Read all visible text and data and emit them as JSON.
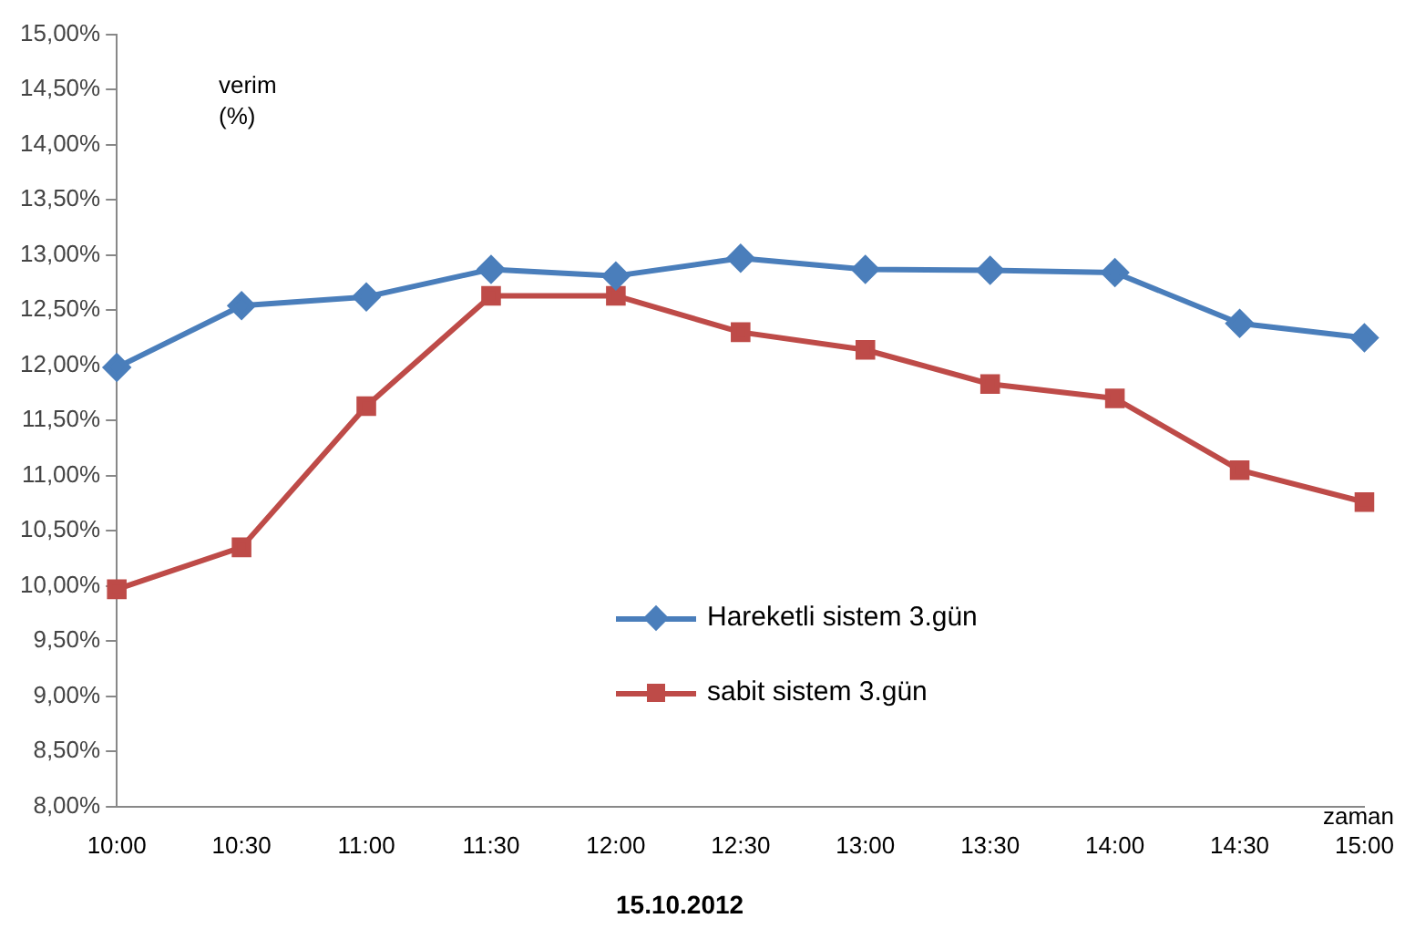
{
  "chart_data": {
    "type": "line",
    "title": "15.10.2012",
    "xlabel": "zaman",
    "ylabel": "verim\n(%)",
    "categories": [
      "10:00",
      "10:30",
      "11:00",
      "11:30",
      "12:00",
      "12:30",
      "13:00",
      "13:30",
      "14:00",
      "14:30",
      "15:00"
    ],
    "series": [
      {
        "name": "Hareketli sistem 3.gün",
        "color": "#4a7ebb",
        "marker": "diamond",
        "values": [
          11.98,
          12.54,
          12.62,
          12.87,
          12.81,
          12.97,
          12.87,
          12.86,
          12.84,
          12.38,
          12.25
        ]
      },
      {
        "name": "sabit sistem 3.gün",
        "color": "#be4b48",
        "marker": "square",
        "values": [
          9.97,
          10.35,
          11.63,
          12.63,
          12.63,
          12.3,
          12.14,
          11.83,
          11.7,
          11.05,
          10.76
        ]
      }
    ],
    "ylim": [
      8,
      15
    ],
    "yticks": [
      {
        "value": 8,
        "label": "8,00%"
      },
      {
        "value": 8.5,
        "label": "8,50%"
      },
      {
        "value": 9,
        "label": "9,00%"
      },
      {
        "value": 9.5,
        "label": "9,50%"
      },
      {
        "value": 10,
        "label": "10,00%"
      },
      {
        "value": 10.5,
        "label": "10,50%"
      },
      {
        "value": 11,
        "label": "11,00%"
      },
      {
        "value": 11.5,
        "label": "11,50%"
      },
      {
        "value": 12,
        "label": "12,00%"
      },
      {
        "value": 12.5,
        "label": "12,50%"
      },
      {
        "value": 13,
        "label": "13,00%"
      },
      {
        "value": 13.5,
        "label": "13,50%"
      },
      {
        "value": 14,
        "label": "14,00%"
      },
      {
        "value": 14.5,
        "label": "14,50%"
      },
      {
        "value": 15,
        "label": "15,00%"
      }
    ],
    "grid": false,
    "legend": "center",
    "line_style": "solid"
  }
}
